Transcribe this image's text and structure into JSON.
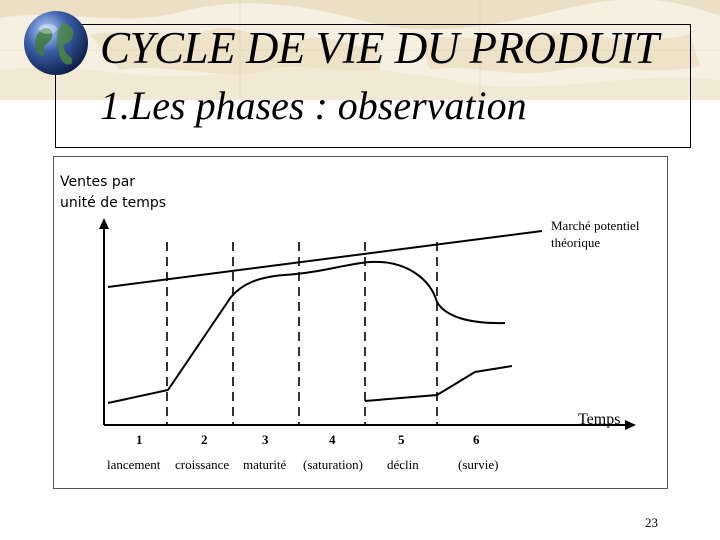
{
  "slide": {
    "title": "CYCLE DE VIE DU PRODUIT",
    "subtitle": "1.Les phases : observation",
    "page_number": "23"
  },
  "diagram": {
    "y_axis_label_line1": "Ventes par",
    "y_axis_label_line2": "unité de temps",
    "x_axis_label": "Temps",
    "market_label_line1": "Marché potentiel",
    "market_label_line2": "théorique",
    "phase_numbers": [
      "1",
      "2",
      "3",
      "4",
      "5",
      "6"
    ],
    "phase_names": [
      "lancement",
      "croissance",
      "maturité",
      "(saturation)",
      "déclin",
      "(survie)"
    ]
  },
  "colors": {
    "line": "#000000",
    "globe": "#3a5fa8"
  }
}
